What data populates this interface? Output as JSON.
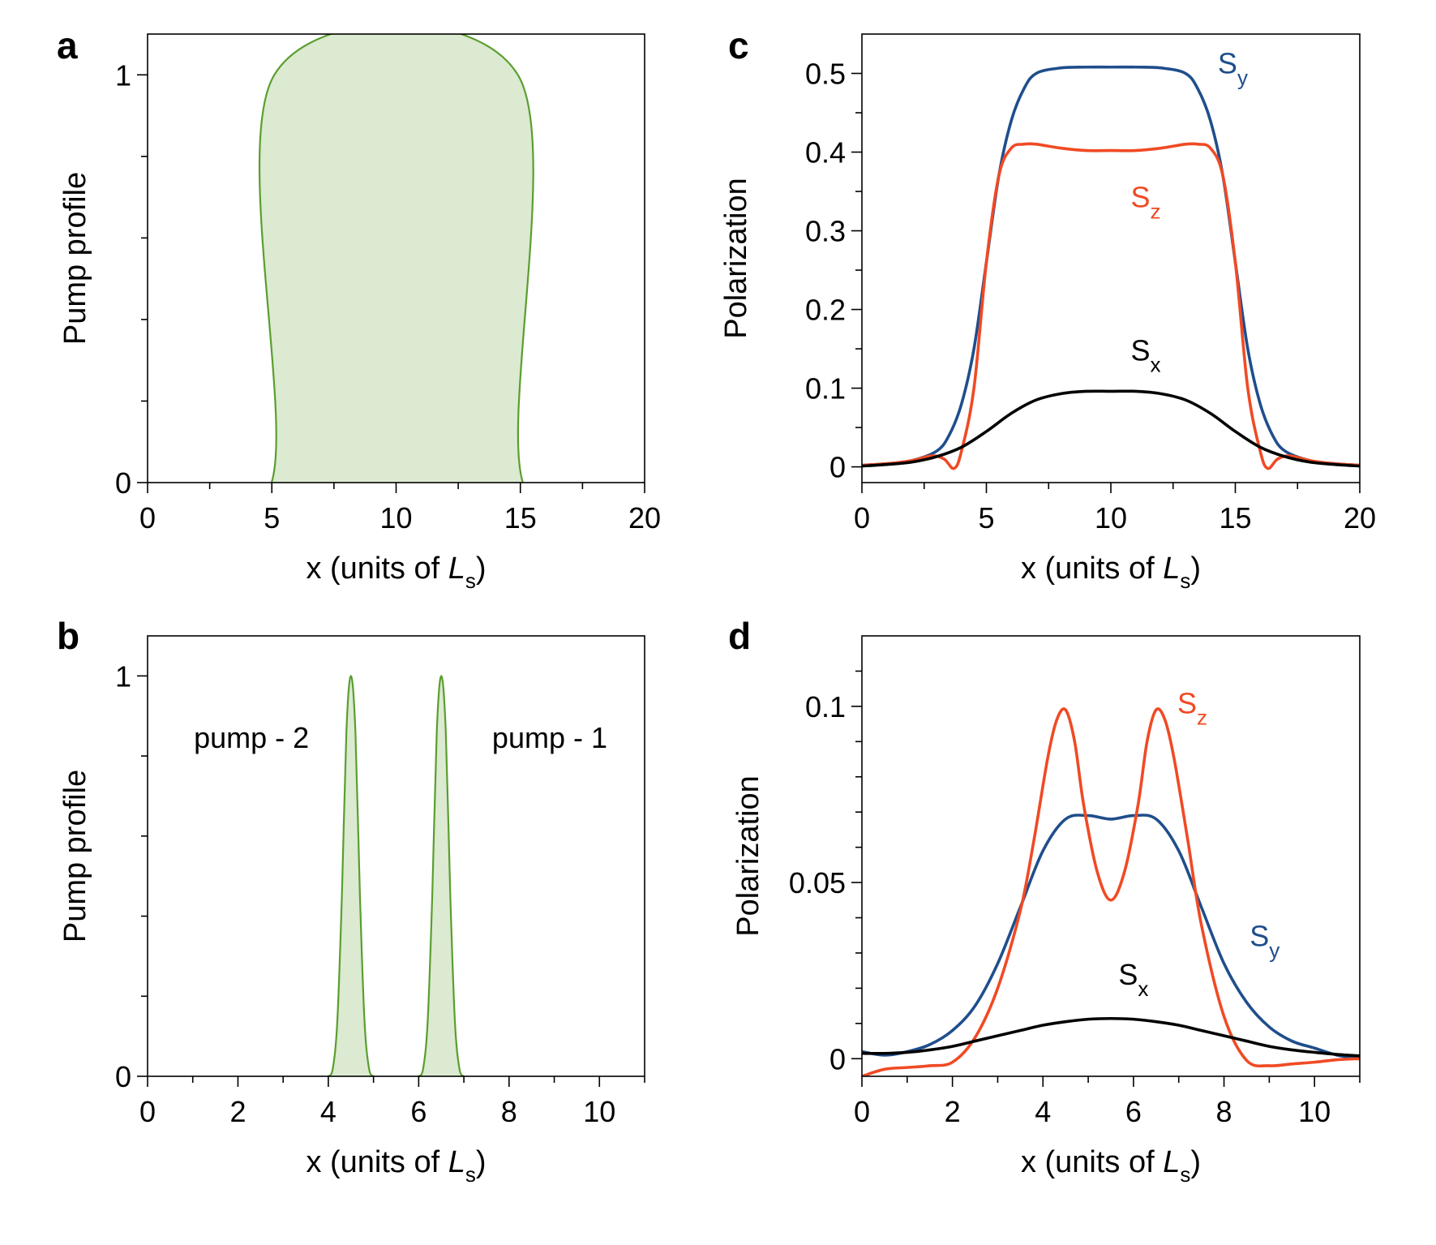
{
  "chart_data": [
    {
      "id": "a",
      "panel_label": "a",
      "type": "area",
      "title": "",
      "xlabel": {
        "main": "x (units of ",
        "italic": "L",
        "sub": "s",
        "close": ")"
      },
      "ylabel": "Pump profile",
      "xlim": [
        0,
        20
      ],
      "ylim": [
        0,
        1.1
      ],
      "xticks": [
        0,
        5,
        10,
        15,
        20
      ],
      "xtick_labels": [
        "0",
        "5",
        "10",
        "15",
        "20"
      ],
      "xminor": [
        2.5,
        7.5,
        12.5,
        17.5
      ],
      "yticks": [
        0,
        1
      ],
      "ytick_labels": [
        "0",
        "1"
      ],
      "yminor": [
        0.2,
        0.4,
        0.6,
        0.8
      ],
      "series": [
        {
          "name": "pump",
          "color": "#5a9e2f",
          "fill": "#dbead0",
          "x": [
            0,
            4.99,
            5.1,
            14.9,
            15.1,
            20
          ],
          "y": [
            0,
            0,
            1,
            1,
            0,
            0
          ]
        }
      ],
      "annotations": []
    },
    {
      "id": "b",
      "panel_label": "b",
      "type": "area",
      "title": "",
      "xlabel": {
        "main": "x (units of ",
        "italic": "L",
        "sub": "s",
        "close": ")"
      },
      "ylabel": "Pump profile",
      "xlim": [
        0,
        11
      ],
      "ylim": [
        0,
        1.1
      ],
      "xticks": [
        0,
        2,
        4,
        6,
        8,
        10
      ],
      "xtick_labels": [
        "0",
        "2",
        "4",
        "6",
        "8",
        "10"
      ],
      "xminor": [
        1,
        3,
        5,
        7,
        9,
        11
      ],
      "yticks": [
        0,
        1
      ],
      "ytick_labels": [
        "0",
        "1"
      ],
      "yminor": [
        0.2,
        0.4,
        0.6,
        0.8
      ],
      "series": [
        {
          "name": "pump - 2",
          "color": "#5a9e2f",
          "fill": "#dbead0",
          "x": [
            4.0,
            4.1,
            4.2,
            4.3,
            4.4,
            4.5,
            4.6,
            4.7,
            4.8,
            4.9,
            5.0
          ],
          "y": [
            0,
            0.02,
            0.14,
            0.45,
            0.86,
            1.0,
            0.86,
            0.45,
            0.14,
            0.02,
            0
          ]
        },
        {
          "name": "pump - 1",
          "color": "#5a9e2f",
          "fill": "#dbead0",
          "x": [
            6.0,
            6.1,
            6.2,
            6.3,
            6.4,
            6.5,
            6.6,
            6.7,
            6.8,
            6.9,
            7.0
          ],
          "y": [
            0,
            0.02,
            0.14,
            0.45,
            0.86,
            1.0,
            0.86,
            0.45,
            0.14,
            0.02,
            0
          ]
        }
      ],
      "annotations": [
        {
          "text": "pump - 2",
          "x": 2.3,
          "y": 0.82
        },
        {
          "text": "pump - 1",
          "x": 8.9,
          "y": 0.82
        }
      ]
    },
    {
      "id": "c",
      "panel_label": "c",
      "type": "line",
      "title": "",
      "xlabel": {
        "main": "x (units of ",
        "italic": "L",
        "sub": "s",
        "close": ")"
      },
      "ylabel": "Polarization",
      "xlim": [
        0,
        20
      ],
      "ylim": [
        -0.02,
        0.55
      ],
      "xticks": [
        0,
        5,
        10,
        15,
        20
      ],
      "xtick_labels": [
        "0",
        "5",
        "10",
        "15",
        "20"
      ],
      "xminor": [
        2.5,
        7.5,
        12.5,
        17.5
      ],
      "yticks": [
        0,
        0.1,
        0.2,
        0.3,
        0.4,
        0.5
      ],
      "ytick_labels": [
        "0",
        "0.1",
        "0.2",
        "0.3",
        "0.4",
        "0.5"
      ],
      "yminor": [
        0.05,
        0.15,
        0.25,
        0.35,
        0.45
      ],
      "series": [
        {
          "name": "Sy",
          "color": "#1f4e8c",
          "x": [
            0,
            1,
            2,
            3,
            3.5,
            4,
            4.5,
            5,
            5.5,
            6,
            6.5,
            7,
            8,
            9,
            10,
            11,
            12,
            13,
            13.5,
            14,
            14.5,
            15,
            15.5,
            16,
            16.5,
            17,
            18,
            19,
            20
          ],
          "y": [
            0.002,
            0.004,
            0.008,
            0.02,
            0.04,
            0.08,
            0.15,
            0.26,
            0.37,
            0.44,
            0.48,
            0.5,
            0.507,
            0.508,
            0.508,
            0.508,
            0.507,
            0.5,
            0.48,
            0.44,
            0.37,
            0.26,
            0.15,
            0.08,
            0.04,
            0.02,
            0.008,
            0.004,
            0.002
          ]
        },
        {
          "name": "Sz",
          "color": "#f04a24",
          "x": [
            0,
            1,
            2,
            2.8,
            3.3,
            3.7,
            4.0,
            4.5,
            5,
            5.5,
            6,
            6.5,
            7,
            8,
            9,
            10,
            11,
            12,
            13,
            13.5,
            14,
            14.5,
            15,
            15.5,
            16.0,
            16.3,
            16.7,
            17.2,
            18,
            19,
            20
          ],
          "y": [
            0.002,
            0.004,
            0.008,
            0.014,
            0.01,
            -0.002,
            0.02,
            0.1,
            0.26,
            0.37,
            0.405,
            0.41,
            0.41,
            0.405,
            0.402,
            0.402,
            0.402,
            0.405,
            0.41,
            0.41,
            0.405,
            0.37,
            0.26,
            0.1,
            0.02,
            -0.002,
            0.01,
            0.014,
            0.008,
            0.004,
            0.002
          ]
        },
        {
          "name": "Sx",
          "color": "#000000",
          "x": [
            0,
            1,
            2,
            3,
            4,
            5,
            6,
            7,
            8,
            9,
            10,
            11,
            12,
            13,
            14,
            15,
            16,
            17,
            18,
            19,
            20
          ],
          "y": [
            0.001,
            0.003,
            0.006,
            0.013,
            0.025,
            0.045,
            0.068,
            0.085,
            0.093,
            0.096,
            0.096,
            0.096,
            0.093,
            0.085,
            0.068,
            0.045,
            0.025,
            0.013,
            0.006,
            0.003,
            0.001
          ]
        }
      ],
      "annotations": [
        {
          "text": "S",
          "sub": "y",
          "x": 14.9,
          "y": 0.5,
          "color": "#1f4e8c"
        },
        {
          "text": "S",
          "sub": "z",
          "x": 11.4,
          "y": 0.33,
          "color": "#f04a24"
        },
        {
          "text": "S",
          "sub": "x",
          "x": 11.4,
          "y": 0.135,
          "color": "#000000"
        }
      ]
    },
    {
      "id": "d",
      "panel_label": "d",
      "type": "line",
      "title": "",
      "xlabel": {
        "main": "x (units of ",
        "italic": "L",
        "sub": "s",
        "close": ")"
      },
      "ylabel": "Polarization",
      "xlim": [
        0,
        11
      ],
      "ylim": [
        -0.005,
        0.12
      ],
      "xticks": [
        0,
        2,
        4,
        6,
        8,
        10
      ],
      "xtick_labels": [
        "0",
        "2",
        "4",
        "6",
        "8",
        "10"
      ],
      "xminor": [
        1,
        3,
        5,
        7,
        9,
        11
      ],
      "yticks": [
        0,
        0.05,
        0.1
      ],
      "ytick_labels": [
        "0",
        "0.05",
        "0.1"
      ],
      "yminor": [
        0.01,
        0.02,
        0.03,
        0.04,
        0.06,
        0.07,
        0.08,
        0.09,
        0.11
      ],
      "series": [
        {
          "name": "Sy",
          "color": "#1f4e8c",
          "x": [
            0,
            0.5,
            1,
            1.5,
            2,
            2.5,
            3,
            3.5,
            4,
            4.5,
            5,
            5.5,
            6,
            6.5,
            7,
            7.5,
            8,
            8.5,
            9,
            9.5,
            10,
            10.5,
            11
          ],
          "y": [
            0.002,
            0.001,
            0.002,
            0.004,
            0.008,
            0.015,
            0.027,
            0.043,
            0.059,
            0.068,
            0.069,
            0.068,
            0.069,
            0.068,
            0.059,
            0.043,
            0.027,
            0.016,
            0.009,
            0.005,
            0.003,
            0.001,
            0.0
          ]
        },
        {
          "name": "Sz",
          "color": "#f04a24",
          "x": [
            0,
            0.5,
            1,
            1.5,
            2,
            2.5,
            3,
            3.5,
            3.8,
            4.1,
            4.3,
            4.5,
            4.7,
            4.9,
            5.2,
            5.5,
            5.8,
            6.1,
            6.3,
            6.5,
            6.7,
            6.9,
            7.2,
            7.5,
            8,
            8.5,
            9,
            9.5,
            10,
            10.5,
            11
          ],
          "y": [
            -0.005,
            -0.003,
            -0.0025,
            -0.002,
            -0.001,
            0.006,
            0.02,
            0.042,
            0.062,
            0.085,
            0.096,
            0.099,
            0.09,
            0.072,
            0.053,
            0.045,
            0.053,
            0.072,
            0.09,
            0.099,
            0.096,
            0.085,
            0.062,
            0.038,
            0.012,
            -0.0005,
            -0.002,
            -0.0015,
            -0.001,
            -0.0003,
            0.0
          ]
        },
        {
          "name": "Sx",
          "color": "#000000",
          "x": [
            0,
            0.5,
            1,
            1.5,
            2,
            2.5,
            3,
            3.5,
            4,
            4.5,
            5,
            5.5,
            6,
            6.5,
            7,
            7.5,
            8,
            8.5,
            9,
            9.5,
            10,
            10.5,
            11
          ],
          "y": [
            0.0015,
            0.0015,
            0.0018,
            0.0025,
            0.0035,
            0.005,
            0.0065,
            0.008,
            0.0095,
            0.0105,
            0.0112,
            0.0114,
            0.0112,
            0.0105,
            0.0095,
            0.008,
            0.0065,
            0.005,
            0.0035,
            0.0025,
            0.0018,
            0.0012,
            0.0008
          ]
        }
      ],
      "annotations": [
        {
          "text": "S",
          "sub": "z",
          "x": 7.3,
          "y": 0.098,
          "color": "#f04a24"
        },
        {
          "text": "S",
          "sub": "y",
          "x": 8.9,
          "y": 0.032,
          "color": "#1f4e8c"
        },
        {
          "text": "S",
          "sub": "x",
          "x": 6.0,
          "y": 0.021,
          "color": "#000000"
        }
      ]
    }
  ]
}
